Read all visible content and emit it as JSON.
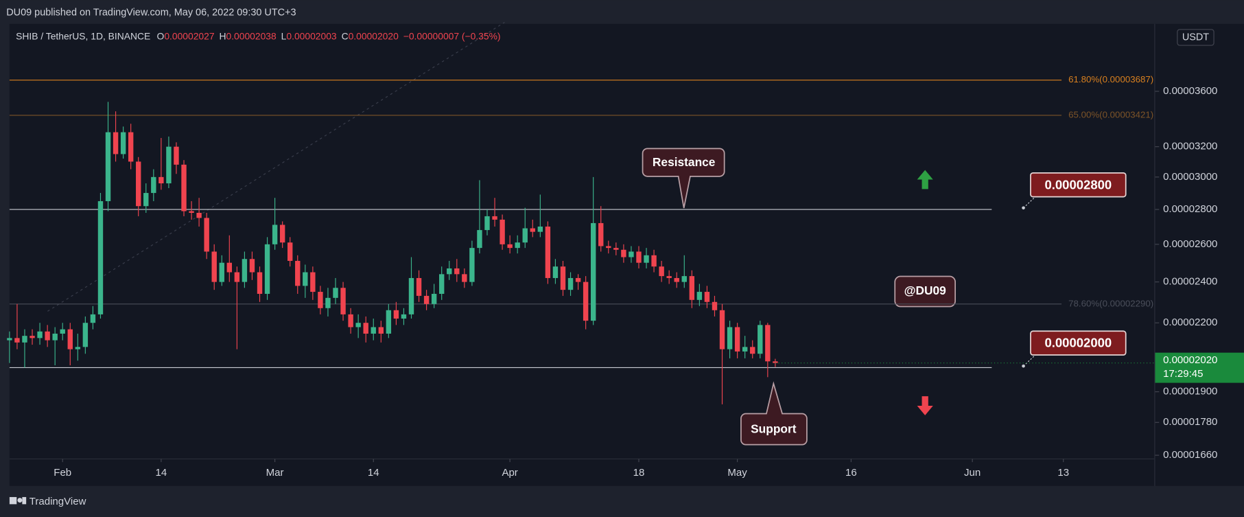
{
  "chart_data": {
    "type": "candlestick",
    "header": "DU09 published on TradingView.com, May 06, 2022 09:30 UTC+3",
    "legend": {
      "symbol": "SHIB / TetherUS, 1D, BINANCE",
      "items": [
        {
          "key": "O",
          "value": "0.00002027"
        },
        {
          "key": "H",
          "value": "0.00002038"
        },
        {
          "key": "L",
          "value": "0.00002003"
        },
        {
          "key": "C",
          "value": "0.00002020"
        }
      ],
      "change": "−0.00000007 (−0.35%)"
    },
    "y_label": "USDT",
    "footer": "TradingView",
    "log_scale": true,
    "grid": false,
    "up_color": "#3bb58c",
    "down_color": "#f0444f",
    "x": [
      "2022-01-25",
      "2022-01-26",
      "2022-01-27",
      "2022-01-28",
      "2022-01-29",
      "2022-01-30",
      "2022-01-31",
      "2022-02-01",
      "2022-02-02",
      "2022-02-03",
      "2022-02-04",
      "2022-02-05",
      "2022-02-06",
      "2022-02-07",
      "2022-02-08",
      "2022-02-09",
      "2022-02-10",
      "2022-02-11",
      "2022-02-12",
      "2022-02-13",
      "2022-02-14",
      "2022-02-15",
      "2022-02-16",
      "2022-02-17",
      "2022-02-18",
      "2022-02-19",
      "2022-02-20",
      "2022-02-21",
      "2022-02-22",
      "2022-02-23",
      "2022-02-24",
      "2022-02-25",
      "2022-02-26",
      "2022-02-27",
      "2022-02-28",
      "2022-03-01",
      "2022-03-02",
      "2022-03-03",
      "2022-03-04",
      "2022-03-05",
      "2022-03-06",
      "2022-03-07",
      "2022-03-08",
      "2022-03-09",
      "2022-03-10",
      "2022-03-11",
      "2022-03-12",
      "2022-03-13",
      "2022-03-14",
      "2022-03-15",
      "2022-03-16",
      "2022-03-17",
      "2022-03-18",
      "2022-03-19",
      "2022-03-20",
      "2022-03-21",
      "2022-03-22",
      "2022-03-23",
      "2022-03-24",
      "2022-03-25",
      "2022-03-26",
      "2022-03-27",
      "2022-03-28",
      "2022-03-29",
      "2022-03-30",
      "2022-03-31",
      "2022-04-01",
      "2022-04-02",
      "2022-04-03",
      "2022-04-04",
      "2022-04-05",
      "2022-04-06",
      "2022-04-07",
      "2022-04-08",
      "2022-04-09",
      "2022-04-10",
      "2022-04-11",
      "2022-04-12",
      "2022-04-13",
      "2022-04-14",
      "2022-04-15",
      "2022-04-16",
      "2022-04-17",
      "2022-04-18",
      "2022-04-19",
      "2022-04-20",
      "2022-04-21",
      "2022-04-22",
      "2022-04-23",
      "2022-04-24",
      "2022-04-25",
      "2022-04-26",
      "2022-04-27",
      "2022-04-28",
      "2022-04-29",
      "2022-04-30",
      "2022-05-01",
      "2022-05-02",
      "2022-05-03",
      "2022-05-04",
      "2022-05-05",
      "2022-05-06"
    ],
    "open": [
      2.12e-05,
      2.13e-05,
      2.11e-05,
      2.14e-05,
      2.13e-05,
      2.16e-05,
      2.12e-05,
      2.15e-05,
      2.17e-05,
      2.08e-05,
      2.09e-05,
      2.2e-05,
      2.24e-05,
      2.85e-05,
      3.3e-05,
      3.15e-05,
      3.3e-05,
      3.1e-05,
      2.82e-05,
      2.9e-05,
      3e-05,
      2.96e-05,
      3.2e-05,
      3.08e-05,
      2.79e-05,
      2.78e-05,
      2.75e-05,
      2.56e-05,
      2.4e-05,
      2.5e-05,
      2.45e-05,
      2.4e-05,
      2.52e-05,
      2.45e-05,
      2.34e-05,
      2.6e-05,
      2.71e-05,
      2.61e-05,
      2.51e-05,
      2.38e-05,
      2.45e-05,
      2.35e-05,
      2.27e-05,
      2.32e-05,
      2.37e-05,
      2.24e-05,
      2.18e-05,
      2.2e-05,
      2.15e-05,
      2.18e-05,
      2.15e-05,
      2.26e-05,
      2.22e-05,
      2.24e-05,
      2.42e-05,
      2.33e-05,
      2.29e-05,
      2.34e-05,
      2.44e-05,
      2.47e-05,
      2.44e-05,
      2.4e-05,
      2.58e-05,
      2.68e-05,
      2.76e-05,
      2.74e-05,
      2.6e-05,
      2.58e-05,
      2.61e-05,
      2.69e-05,
      2.67e-05,
      2.7e-05,
      2.42e-05,
      2.48e-05,
      2.36e-05,
      2.42e-05,
      2.4e-05,
      2.21e-05,
      2.72e-05,
      2.59e-05,
      2.58e-05,
      2.57e-05,
      2.53e-05,
      2.56e-05,
      2.5e-05,
      2.54e-05,
      2.48e-05,
      2.43e-05,
      2.42e-05,
      2.4e-05,
      2.43e-05,
      2.31e-05,
      2.35e-05,
      2.3e-05,
      2.26e-05,
      2.08e-05,
      2.18e-05,
      2.07e-05,
      2.09e-05,
      2.06e-05,
      2.19e-05,
      2.027e-05
    ],
    "high": [
      2.16e-05,
      2.29e-05,
      2.17e-05,
      2.17e-05,
      2.2e-05,
      2.19e-05,
      2.18e-05,
      2.2e-05,
      2.2e-05,
      2.15e-05,
      2.23e-05,
      2.28e-05,
      2.9e-05,
      3.52e-05,
      3.45e-05,
      3.34e-05,
      3.36e-05,
      3.13e-05,
      2.96e-05,
      3.05e-05,
      3.26e-05,
      3.27e-05,
      3.23e-05,
      3.11e-05,
      2.85e-05,
      2.87e-05,
      2.78e-05,
      2.6e-05,
      2.54e-05,
      2.65e-05,
      2.48e-05,
      2.56e-05,
      2.56e-05,
      2.48e-05,
      2.64e-05,
      2.87e-05,
      2.73e-05,
      2.64e-05,
      2.54e-05,
      2.49e-05,
      2.48e-05,
      2.38e-05,
      2.37e-05,
      2.42e-05,
      2.4e-05,
      2.27e-05,
      2.24e-05,
      2.23e-05,
      2.22e-05,
      2.21e-05,
      2.29e-05,
      2.3e-05,
      2.27e-05,
      2.53e-05,
      2.46e-05,
      2.36e-05,
      2.39e-05,
      2.48e-05,
      2.51e-05,
      2.52e-05,
      2.47e-05,
      2.62e-05,
      2.98e-05,
      2.8e-05,
      2.87e-05,
      2.77e-05,
      2.65e-05,
      2.65e-05,
      2.81e-05,
      2.74e-05,
      2.89e-05,
      2.73e-05,
      2.52e-05,
      2.51e-05,
      2.45e-05,
      2.44e-05,
      2.43e-05,
      3e-05,
      2.82e-05,
      2.62e-05,
      2.61e-05,
      2.6e-05,
      2.59e-05,
      2.59e-05,
      2.58e-05,
      2.57e-05,
      2.51e-05,
      2.46e-05,
      2.45e-05,
      2.54e-05,
      2.46e-05,
      2.39e-05,
      2.38e-05,
      2.33e-05,
      2.29e-05,
      2.21e-05,
      2.2e-05,
      2.14e-05,
      2.12e-05,
      2.21e-05,
      2.2e-05,
      2.038e-05
    ],
    "low": [
      2.02e-05,
      2.08e-05,
      2e-05,
      2.1e-05,
      2.1e-05,
      2.09e-05,
      2.01e-05,
      2.12e-05,
      2.01e-05,
      2.03e-05,
      2.06e-05,
      2.17e-05,
      2.22e-05,
      2.79e-05,
      3.1e-05,
      3.12e-05,
      3.05e-05,
      2.76e-05,
      2.78e-05,
      2.85e-05,
      2.92e-05,
      2.93e-05,
      3.02e-05,
      2.76e-05,
      2.74e-05,
      2.7e-05,
      2.52e-05,
      2.36e-05,
      2.38e-05,
      2.4e-05,
      2.08e-05,
      2.37e-05,
      2.41e-05,
      2.3e-05,
      2.31e-05,
      2.57e-05,
      2.58e-05,
      2.48e-05,
      2.34e-05,
      2.32e-05,
      2.31e-05,
      2.24e-05,
      2.23e-05,
      2.29e-05,
      2.21e-05,
      2.15e-05,
      2.13e-05,
      2.11e-05,
      2.12e-05,
      2.11e-05,
      2.13e-05,
      2.19e-05,
      2.19e-05,
      2.22e-05,
      2.3e-05,
      2.26e-05,
      2.27e-05,
      2.31e-05,
      2.41e-05,
      2.4e-05,
      2.37e-05,
      2.38e-05,
      2.55e-05,
      2.65e-05,
      2.7e-05,
      2.57e-05,
      2.55e-05,
      2.55e-05,
      2.58e-05,
      2.64e-05,
      2.64e-05,
      2.39e-05,
      2.39e-05,
      2.33e-05,
      2.33e-05,
      2.36e-05,
      2.17e-05,
      2.19e-05,
      2.56e-05,
      2.55e-05,
      2.54e-05,
      2.5e-05,
      2.5e-05,
      2.47e-05,
      2.47e-05,
      2.45e-05,
      2.4e-05,
      2.39e-05,
      2.37e-05,
      2.37e-05,
      2.27e-05,
      2.28e-05,
      2.27e-05,
      2.23e-05,
      1.85e-05,
      2.04e-05,
      2.04e-05,
      2.04e-05,
      2.04e-05,
      2.04e-05,
      1.96e-05,
      2.003e-05
    ],
    "close": [
      2.13e-05,
      2.11e-05,
      2.14e-05,
      2.13e-05,
      2.16e-05,
      2.12e-05,
      2.15e-05,
      2.17e-05,
      2.08e-05,
      2.09e-05,
      2.2e-05,
      2.24e-05,
      2.85e-05,
      3.3e-05,
      3.15e-05,
      3.3e-05,
      3.1e-05,
      2.82e-05,
      2.9e-05,
      3e-05,
      2.96e-05,
      3.2e-05,
      3.08e-05,
      2.79e-05,
      2.78e-05,
      2.75e-05,
      2.56e-05,
      2.4e-05,
      2.5e-05,
      2.45e-05,
      2.4e-05,
      2.52e-05,
      2.45e-05,
      2.34e-05,
      2.6e-05,
      2.71e-05,
      2.61e-05,
      2.51e-05,
      2.38e-05,
      2.45e-05,
      2.35e-05,
      2.27e-05,
      2.32e-05,
      2.37e-05,
      2.24e-05,
      2.18e-05,
      2.2e-05,
      2.15e-05,
      2.18e-05,
      2.15e-05,
      2.26e-05,
      2.22e-05,
      2.24e-05,
      2.42e-05,
      2.33e-05,
      2.29e-05,
      2.34e-05,
      2.44e-05,
      2.47e-05,
      2.44e-05,
      2.4e-05,
      2.58e-05,
      2.68e-05,
      2.76e-05,
      2.74e-05,
      2.6e-05,
      2.58e-05,
      2.61e-05,
      2.69e-05,
      2.67e-05,
      2.7e-05,
      2.42e-05,
      2.48e-05,
      2.36e-05,
      2.42e-05,
      2.4e-05,
      2.21e-05,
      2.72e-05,
      2.59e-05,
      2.58e-05,
      2.57e-05,
      2.53e-05,
      2.56e-05,
      2.5e-05,
      2.54e-05,
      2.48e-05,
      2.43e-05,
      2.42e-05,
      2.4e-05,
      2.43e-05,
      2.31e-05,
      2.35e-05,
      2.3e-05,
      2.26e-05,
      2.08e-05,
      2.18e-05,
      2.07e-05,
      2.09e-05,
      2.06e-05,
      2.19e-05,
      2.027e-05,
      2.02e-05
    ],
    "last_price_label": "0.00002020",
    "countdown": "17:29:45",
    "last_color": "#1a8a3c",
    "xlim": [
      "2022-01-25",
      "2022-06-25"
    ],
    "xticks": [
      {
        "value": "2022-02-01",
        "label": "Feb"
      },
      {
        "value": "2022-02-14",
        "label": "14"
      },
      {
        "value": "2022-03-01",
        "label": "Mar"
      },
      {
        "value": "2022-03-14",
        "label": "14"
      },
      {
        "value": "2022-04-01",
        "label": "Apr"
      },
      {
        "value": "2022-04-18",
        "label": "18"
      },
      {
        "value": "2022-05-01",
        "label": "May"
      },
      {
        "value": "2022-05-16",
        "label": "16"
      },
      {
        "value": "2022-06-01",
        "label": "Jun"
      },
      {
        "value": "2022-06-13",
        "label": "13"
      }
    ],
    "ylim": [
      1.647e-05,
      4.155e-05
    ],
    "yticks": [
      {
        "value": 3.6e-05,
        "label": "0.00003600"
      },
      {
        "value": 3.2e-05,
        "label": "0.00003200"
      },
      {
        "value": 3e-05,
        "label": "0.00003000"
      },
      {
        "value": 2.8e-05,
        "label": "0.00002800"
      },
      {
        "value": 2.6e-05,
        "label": "0.00002600"
      },
      {
        "value": 2.4e-05,
        "label": "0.00002400"
      },
      {
        "value": 2.2e-05,
        "label": "0.00002200"
      },
      {
        "value": 1.9e-05,
        "label": "0.00001900"
      },
      {
        "value": 1.78e-05,
        "label": "0.00001780"
      },
      {
        "value": 1.66e-05,
        "label": "0.00001660"
      }
    ],
    "levels": [
      {
        "value": 3.687e-05,
        "label": "61.80%(0.00003687)",
        "color": "#d9801f"
      },
      {
        "value": 3.421e-05,
        "label": "65.00%(0.00003421)",
        "color": "#7d5428"
      },
      {
        "value": 2.29e-05,
        "label": "78.60%(0.00002290)",
        "color": "#4a4e5a"
      }
    ],
    "lines": [
      {
        "value": 2.8e-05,
        "label": "0.00002800"
      },
      {
        "value": 2e-05,
        "label": "0.00002000"
      }
    ],
    "annotations": {
      "resistance": "Resistance",
      "support": "Support",
      "author": "@DU09"
    }
  }
}
